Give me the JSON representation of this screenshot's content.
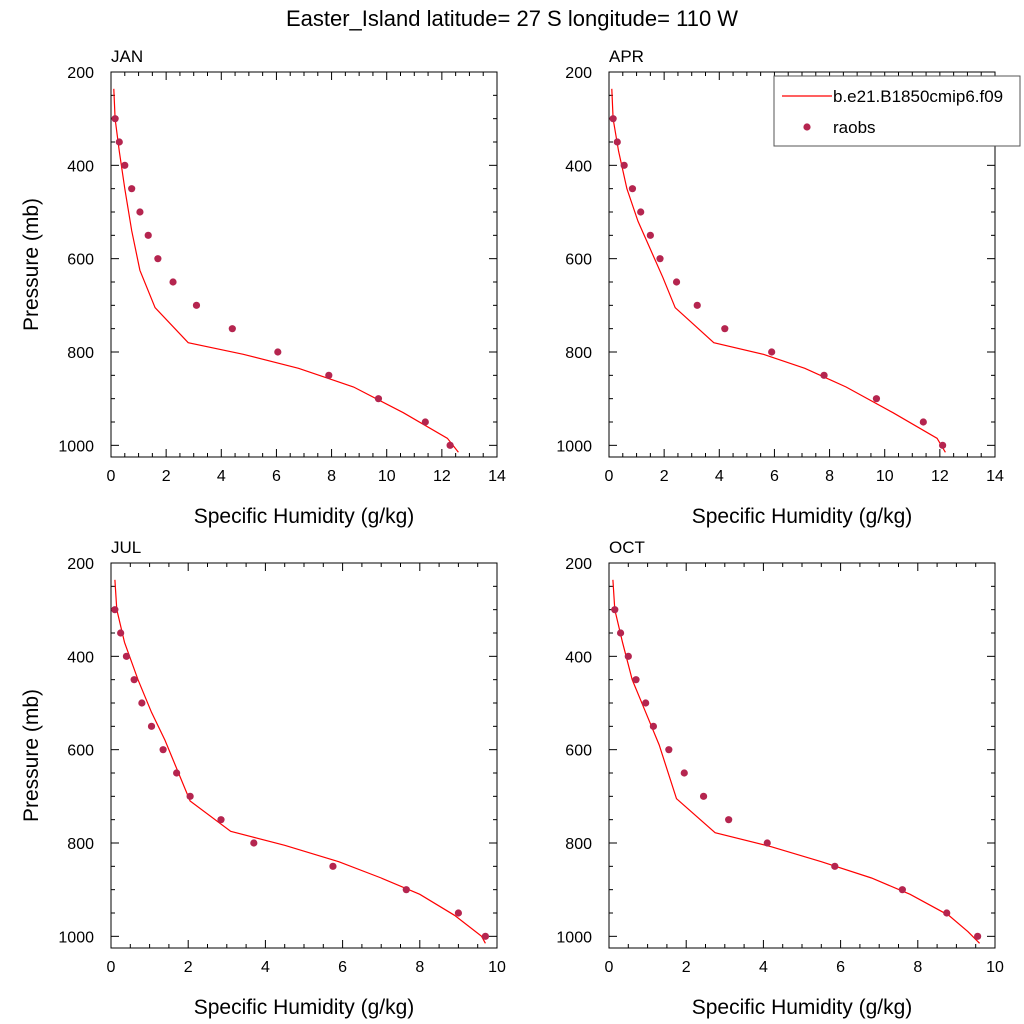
{
  "title": "Easter_Island  latitude= 27 S longitude= 110 W",
  "colors": {
    "model": "#ff0000",
    "obs": "#b5254f",
    "axis": "#000000"
  },
  "legend": {
    "entries": [
      {
        "label": "b.e21.B1850cmip6.f09",
        "kind": "line"
      },
      {
        "label": "raobs",
        "kind": "marker"
      }
    ],
    "placement": "top-right"
  },
  "chart_data": [
    {
      "type": "line",
      "title": "JAN",
      "xlabel": "Specific Humidity (g/kg)",
      "ylabel": "Pressure (mb)",
      "xlim": [
        0,
        14
      ],
      "ylim": [
        200,
        1025
      ],
      "y_inverted": true,
      "xticks": [
        0,
        2,
        4,
        6,
        8,
        10,
        12,
        14
      ],
      "yticks": [
        200,
        400,
        600,
        800,
        1000
      ],
      "grid": false,
      "series": [
        {
          "name": "b.e21.B1850cmip6.f09",
          "kind": "line",
          "x": [
            0.1,
            0.15,
            0.3,
            0.5,
            0.75,
            1.05,
            1.6,
            2.8,
            4.8,
            6.8,
            8.8,
            10.6,
            12.2,
            12.6
          ],
          "y": [
            236,
            300,
            370,
            450,
            540,
            625,
            705,
            780,
            805,
            835,
            875,
            930,
            985,
            1015
          ]
        },
        {
          "name": "raobs",
          "kind": "marker",
          "x": [
            0.15,
            0.3,
            0.5,
            0.75,
            1.05,
            1.35,
            1.7,
            2.25,
            3.1,
            4.4,
            6.05,
            7.9,
            9.7,
            11.4,
            12.3
          ],
          "y": [
            300,
            350,
            400,
            450,
            500,
            550,
            600,
            650,
            700,
            750,
            800,
            850,
            900,
            950,
            1000
          ]
        }
      ]
    },
    {
      "type": "line",
      "title": "APR",
      "xlabel": "Specific Humidity (g/kg)",
      "ylabel": "",
      "xlim": [
        0,
        14
      ],
      "ylim": [
        200,
        1025
      ],
      "y_inverted": true,
      "xticks": [
        0,
        2,
        4,
        6,
        8,
        10,
        12,
        14
      ],
      "yticks": [
        200,
        400,
        600,
        800,
        1000
      ],
      "grid": false,
      "series": [
        {
          "name": "b.e21.B1850cmip6.f09",
          "kind": "line",
          "x": [
            0.1,
            0.15,
            0.35,
            0.65,
            1.05,
            1.5,
            1.95,
            2.4,
            3.8,
            5.6,
            7.1,
            8.6,
            10.3,
            11.9,
            12.2
          ],
          "y": [
            236,
            300,
            370,
            450,
            520,
            580,
            640,
            705,
            780,
            805,
            835,
            875,
            930,
            985,
            1015
          ]
        },
        {
          "name": "raobs",
          "kind": "marker",
          "x": [
            0.15,
            0.3,
            0.55,
            0.85,
            1.15,
            1.5,
            1.85,
            2.45,
            3.2,
            4.2,
            5.9,
            7.8,
            9.7,
            11.4,
            12.1
          ],
          "y": [
            300,
            350,
            400,
            450,
            500,
            550,
            600,
            650,
            700,
            750,
            800,
            850,
            900,
            950,
            1000
          ]
        }
      ]
    },
    {
      "type": "line",
      "title": "JUL",
      "xlabel": "Specific Humidity (g/kg)",
      "ylabel": "Pressure (mb)",
      "xlim": [
        0,
        10
      ],
      "ylim": [
        200,
        1025
      ],
      "y_inverted": true,
      "xticks": [
        0,
        2,
        4,
        6,
        8,
        10
      ],
      "yticks": [
        200,
        400,
        600,
        800,
        1000
      ],
      "grid": false,
      "series": [
        {
          "name": "b.e21.B1850cmip6.f09",
          "kind": "line",
          "x": [
            0.1,
            0.15,
            0.35,
            0.7,
            1.05,
            1.4,
            2.05,
            3.1,
            4.5,
            5.9,
            7.0,
            8.0,
            8.9,
            9.6,
            9.7
          ],
          "y": [
            236,
            300,
            370,
            450,
            520,
            580,
            710,
            775,
            805,
            840,
            875,
            910,
            955,
            1000,
            1015
          ]
        },
        {
          "name": "raobs",
          "kind": "marker",
          "x": [
            0.1,
            0.25,
            0.4,
            0.6,
            0.8,
            1.05,
            1.35,
            1.7,
            2.05,
            2.85,
            3.7,
            5.75,
            7.65,
            9.0,
            9.7
          ],
          "y": [
            300,
            350,
            400,
            450,
            500,
            550,
            600,
            650,
            700,
            750,
            800,
            850,
            900,
            950,
            1000
          ]
        }
      ]
    },
    {
      "type": "line",
      "title": "OCT",
      "xlabel": "Specific Humidity (g/kg)",
      "ylabel": "",
      "xlim": [
        0,
        10
      ],
      "ylim": [
        200,
        1025
      ],
      "y_inverted": true,
      "xticks": [
        0,
        2,
        4,
        6,
        8,
        10
      ],
      "yticks": [
        200,
        400,
        600,
        800,
        1000
      ],
      "grid": false,
      "series": [
        {
          "name": "b.e21.B1850cmip6.f09",
          "kind": "line",
          "x": [
            0.1,
            0.15,
            0.35,
            0.6,
            0.95,
            1.3,
            1.75,
            2.75,
            4.2,
            5.5,
            6.8,
            7.8,
            8.8,
            9.3,
            9.6
          ],
          "y": [
            236,
            300,
            370,
            450,
            520,
            590,
            705,
            778,
            808,
            840,
            875,
            910,
            955,
            990,
            1015
          ]
        },
        {
          "name": "raobs",
          "kind": "marker",
          "x": [
            0.15,
            0.3,
            0.5,
            0.7,
            0.95,
            1.15,
            1.55,
            1.95,
            2.45,
            3.1,
            4.1,
            5.85,
            7.6,
            8.75,
            9.55
          ],
          "y": [
            300,
            350,
            400,
            450,
            500,
            550,
            600,
            650,
            700,
            750,
            800,
            850,
            900,
            950,
            1000
          ]
        }
      ]
    }
  ]
}
